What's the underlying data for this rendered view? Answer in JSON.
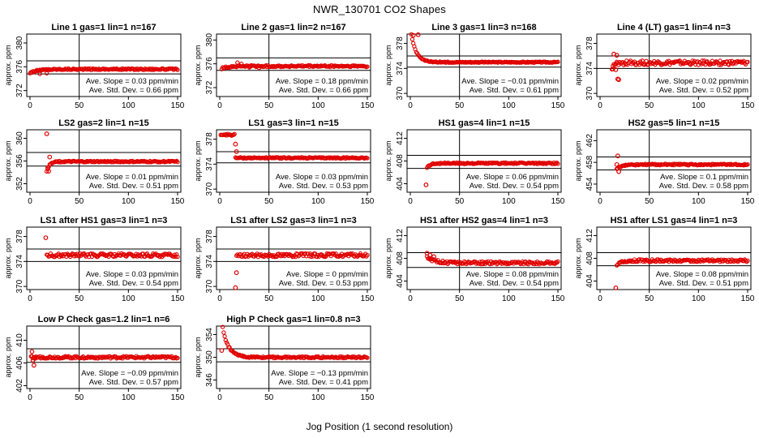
{
  "title": "NWR_130701  CO2 Shapes",
  "xlabel": "Jog Position (1 second resolution)",
  "chart_data": [
    {
      "type": "scatter",
      "title": "Line 1 gas=1 lin=1 n=167",
      "ylabel": "approx. ppm",
      "xlim": [
        0,
        150
      ],
      "xticks": [
        0,
        50,
        100,
        150
      ],
      "ylim": [
        371,
        381.5
      ],
      "yticks": [
        372,
        376,
        380
      ],
      "hlines": [
        377,
        374.8
      ],
      "vline": 50,
      "start": 0,
      "end": 150,
      "level": 375.6,
      "noise": 0.12,
      "startv": 375.0,
      "decay": 8,
      "dip": [
        [
          10,
          374.8
        ],
        [
          17,
          374.9
        ]
      ],
      "outliers": [],
      "slope": "Ave. Slope = 0.03 ppm/min",
      "std": "Ave. Std. Dev. = 0.66 ppm",
      "grid": false,
      "legend": "none"
    },
    {
      "type": "scatter",
      "title": "Line 2 gas=1 lin=2 n=167",
      "ylabel": "approx. ppm",
      "xlim": [
        0,
        150
      ],
      "xticks": [
        0,
        50,
        100,
        150
      ],
      "ylim": [
        370.5,
        381
      ],
      "yticks": [
        372,
        376,
        380
      ],
      "hlines": [
        377,
        374.9
      ],
      "vline": 50,
      "start": 2,
      "end": 150,
      "level": 375.6,
      "noise": 0.15,
      "startv": 375.2,
      "decay": 6,
      "dip": [
        [
          18,
          376.2
        ],
        [
          22,
          376.0
        ],
        [
          30,
          375.4
        ],
        [
          40,
          375.3
        ]
      ],
      "outliers": [],
      "slope": "Ave. Slope = 0.18 ppm/min",
      "std": "Ave. Std. Dev. = 0.66 ppm",
      "grid": false,
      "legend": "none"
    },
    {
      "type": "scatter",
      "title": "Line 3 gas=1 lin=3 n=168",
      "ylabel": "approx. ppm",
      "xlim": [
        0,
        150
      ],
      "xticks": [
        0,
        50,
        100,
        150
      ],
      "ylim": [
        369.5,
        379.5
      ],
      "yticks": [
        370,
        374,
        378
      ],
      "hlines": [
        376,
        374.2
      ],
      "vline": 50,
      "start": 1,
      "end": 150,
      "level": 375.0,
      "noise": 0.08,
      "startv": 379.5,
      "decay": 5,
      "dip": [],
      "outliers": [
        [
          3,
          379.3
        ],
        [
          8,
          379.4
        ]
      ],
      "slope": "Ave. Slope = −0.01 ppm/min",
      "std": "Ave. Std. Dev. = 0.61 ppm",
      "grid": false,
      "legend": "none"
    },
    {
      "type": "scatter",
      "title": "Line 4 (LT) gas=1 lin=4 n=3",
      "ylabel": "approx. ppm",
      "xlim": [
        0,
        150
      ],
      "xticks": [
        0,
        50,
        100,
        150
      ],
      "ylim": [
        369.5,
        379.5
      ],
      "yticks": [
        370,
        374,
        378
      ],
      "hlines": [
        376,
        374.0
      ],
      "vline": 50,
      "start": 12,
      "end": 150,
      "level": 374.9,
      "noise": 0.35,
      "startv": 374.0,
      "decay": 3,
      "dip": [],
      "outliers": [
        [
          14,
          376.3
        ],
        [
          17,
          376.1
        ],
        [
          18,
          372.3
        ],
        [
          19,
          372.2
        ],
        [
          13,
          373.9
        ],
        [
          16,
          373.8
        ]
      ],
      "slope": "Ave. Slope = 0.02 ppm/min",
      "std": "Ave. Std. Dev. = 0.52 ppm",
      "grid": false,
      "legend": "none"
    },
    {
      "type": "scatter",
      "title": "LS2 gas=2 lin=1 n=15",
      "ylabel": "approx. ppm",
      "xlim": [
        0,
        150
      ],
      "xticks": [
        0,
        50,
        100,
        150
      ],
      "ylim": [
        350.5,
        361.5
      ],
      "yticks": [
        352,
        356,
        360
      ],
      "hlines": [
        357.5,
        355.1
      ],
      "vline": 50,
      "start": 17,
      "end": 150,
      "level": 355.9,
      "noise": 0.12,
      "startv": 354.2,
      "decay": 3,
      "dip": [],
      "outliers": [
        [
          17,
          360.8
        ],
        [
          18,
          354.8
        ],
        [
          19,
          354.2
        ],
        [
          20,
          356.7
        ]
      ],
      "slope": "Ave. Slope = 0.01 ppm/min",
      "std": "Ave. Std. Dev. = 0.51 ppm",
      "grid": false,
      "legend": "none"
    },
    {
      "type": "scatter",
      "title": "LS1 gas=3 lin=1 n=15",
      "ylabel": "approx. ppm",
      "xlim": [
        0,
        150
      ],
      "xticks": [
        0,
        50,
        100,
        150
      ],
      "ylim": [
        369.5,
        379.5
      ],
      "yticks": [
        370,
        374,
        378
      ],
      "hlines": [
        376,
        374.2
      ],
      "vline": 50,
      "start": 1,
      "end": 150,
      "level": 375.0,
      "noise": 0.1,
      "startv": 378.7,
      "decay": 1,
      "dip": [],
      "plateau": [
        1,
        15,
        378.7
      ],
      "outliers": [
        [
          16,
          377.2
        ],
        [
          17,
          376.0
        ]
      ],
      "slope": "Ave. Slope = 0.03 ppm/min",
      "std": "Ave. Std. Dev. = 0.53 ppm",
      "grid": false,
      "legend": "none"
    },
    {
      "type": "scatter",
      "title": "HS1 gas=4 lin=1 n=15",
      "ylabel": "approx. ppm",
      "xlim": [
        0,
        150
      ],
      "xticks": [
        0,
        50,
        100,
        150
      ],
      "ylim": [
        402.5,
        413.5
      ],
      "yticks": [
        404,
        408,
        412
      ],
      "hlines": [
        409,
        406.7
      ],
      "vline": 50,
      "start": 17,
      "end": 150,
      "level": 407.6,
      "noise": 0.13,
      "startv": 406.8,
      "decay": 3,
      "dip": [],
      "outliers": [
        [
          16,
          403.8
        ]
      ],
      "slope": "Ave. Slope = 0.06 ppm/min",
      "std": "Ave. Std. Dev. = 0.54 ppm",
      "grid": false,
      "legend": "none"
    },
    {
      "type": "scatter",
      "title": "HS2 gas=5 lin=1 n=15",
      "ylabel": "approx. ppm",
      "xlim": [
        0,
        150
      ],
      "xticks": [
        0,
        50,
        100,
        150
      ],
      "ylim": [
        452.5,
        464
      ],
      "yticks": [
        454,
        458,
        462
      ],
      "hlines": [
        459,
        456.6
      ],
      "vline": 50,
      "start": 17,
      "end": 150,
      "level": 457.6,
      "noise": 0.13,
      "startv": 456.8,
      "decay": 5,
      "dip": [],
      "outliers": [
        [
          18,
          459.2
        ],
        [
          17,
          457.6
        ],
        [
          19,
          456.3
        ]
      ],
      "slope": "Ave. Slope = 0.1 ppm/min",
      "std": "Ave. Std. Dev. = 0.58 ppm",
      "grid": false,
      "legend": "none"
    },
    {
      "type": "scatter",
      "title": "LS1 after HS1 gas=3 lin=1 n=3",
      "ylabel": "approx. ppm",
      "xlim": [
        0,
        150
      ],
      "xticks": [
        0,
        50,
        100,
        150
      ],
      "ylim": [
        369.5,
        379.5
      ],
      "yticks": [
        370,
        374,
        378
      ],
      "hlines": [
        376,
        374.0
      ],
      "vline": 50,
      "start": 17,
      "end": 150,
      "level": 375.0,
      "noise": 0.28,
      "startv": 375.0,
      "decay": 2,
      "dip": [],
      "outliers": [
        [
          16,
          377.8
        ]
      ],
      "slope": "Ave. Slope = 0.03 ppm/min",
      "std": "Ave. Std. Dev. = 0.54 ppm",
      "grid": false,
      "legend": "none"
    },
    {
      "type": "scatter",
      "title": "LS1 after LS2 gas=3 lin=1 n=3",
      "ylabel": "approx. ppm",
      "xlim": [
        0,
        150
      ],
      "xticks": [
        0,
        50,
        100,
        150
      ],
      "ylim": [
        369.5,
        379.5
      ],
      "yticks": [
        370,
        374,
        378
      ],
      "hlines": [
        376,
        374.0
      ],
      "vline": 50,
      "start": 17,
      "end": 150,
      "level": 375.0,
      "noise": 0.28,
      "startv": 374.8,
      "decay": 2,
      "dip": [],
      "outliers": [
        [
          16,
          369.8
        ],
        [
          17,
          372.2
        ]
      ],
      "slope": "Ave. Slope = 0 ppm/min",
      "std": "Ave. Std. Dev. = 0.53 ppm",
      "grid": false,
      "legend": "none"
    },
    {
      "type": "scatter",
      "title": "HS1 after HS2 gas=4 lin=1 n=3",
      "ylabel": "approx. ppm",
      "xlim": [
        0,
        150
      ],
      "xticks": [
        0,
        50,
        100,
        150
      ],
      "ylim": [
        402.5,
        413.5
      ],
      "yticks": [
        404,
        408,
        412
      ],
      "hlines": [
        409,
        406.4
      ],
      "vline": 50,
      "start": 17,
      "end": 150,
      "level": 407.2,
      "noise": 0.25,
      "startv": 408.2,
      "decay": 8,
      "dip": [],
      "outliers": [
        [
          17,
          408.9
        ],
        [
          20,
          408.6
        ],
        [
          24,
          408.3
        ]
      ],
      "slope": "Ave. Slope = 0.08 ppm/min",
      "std": "Ave. Std. Dev. = 0.54 ppm",
      "grid": false,
      "legend": "none"
    },
    {
      "type": "scatter",
      "title": "HS1 after LS1 gas=4 lin=1 n=3",
      "ylabel": "approx. ppm",
      "xlim": [
        0,
        150
      ],
      "xticks": [
        0,
        50,
        100,
        150
      ],
      "ylim": [
        402.5,
        413.5
      ],
      "yticks": [
        404,
        408,
        412
      ],
      "hlines": [
        409,
        406.7
      ],
      "vline": 50,
      "start": 17,
      "end": 150,
      "level": 407.6,
      "noise": 0.22,
      "startv": 406.6,
      "decay": 4,
      "dip": [],
      "outliers": [
        [
          16,
          402.8
        ]
      ],
      "slope": "Ave. Slope = 0.08 ppm/min",
      "std": "Ave. Std. Dev. = 0.51 ppm",
      "grid": false,
      "legend": "none"
    },
    {
      "type": "scatter",
      "title": "Low P Check gas=1.2 lin=1 n=6",
      "ylabel": "approx. ppm",
      "xlim": [
        0,
        150
      ],
      "xticks": [
        0,
        50,
        100,
        150
      ],
      "ylim": [
        401.5,
        412.5
      ],
      "yticks": [
        402,
        406,
        410
      ],
      "hlines": [
        408.5,
        406.1
      ],
      "vline": 50,
      "start": 1,
      "end": 150,
      "level": 407.0,
      "noise": 0.2,
      "startv": 407.0,
      "decay": 2,
      "dip": [],
      "outliers": [
        [
          2,
          408.0
        ],
        [
          3,
          406.5
        ],
        [
          4,
          405.6
        ],
        [
          5,
          406.8
        ]
      ],
      "slope": "Ave. Slope = −0.09 ppm/min",
      "std": "Ave. Std. Dev. = 0.57 ppm",
      "grid": false,
      "legend": "none"
    },
    {
      "type": "scatter",
      "title": "High P Check gas=1 lin=0.8 n=3",
      "ylabel": "approx. ppm",
      "xlim": [
        0,
        150
      ],
      "xticks": [
        0,
        50,
        100,
        150
      ],
      "ylim": [
        344.5,
        355.5
      ],
      "yticks": [
        346,
        350,
        354
      ],
      "hlines": [
        351.5,
        349.2
      ],
      "vline": 50,
      "start": 3,
      "end": 150,
      "level": 350.0,
      "noise": 0.14,
      "startv": 355.2,
      "decay": 6,
      "dip": [],
      "outliers": [
        [
          2,
          351.2
        ]
      ],
      "slope": "Ave. Slope = −0.13 ppm/min",
      "std": "Ave. Std. Dev. = 0.41 ppm",
      "grid": false,
      "legend": "none"
    }
  ]
}
